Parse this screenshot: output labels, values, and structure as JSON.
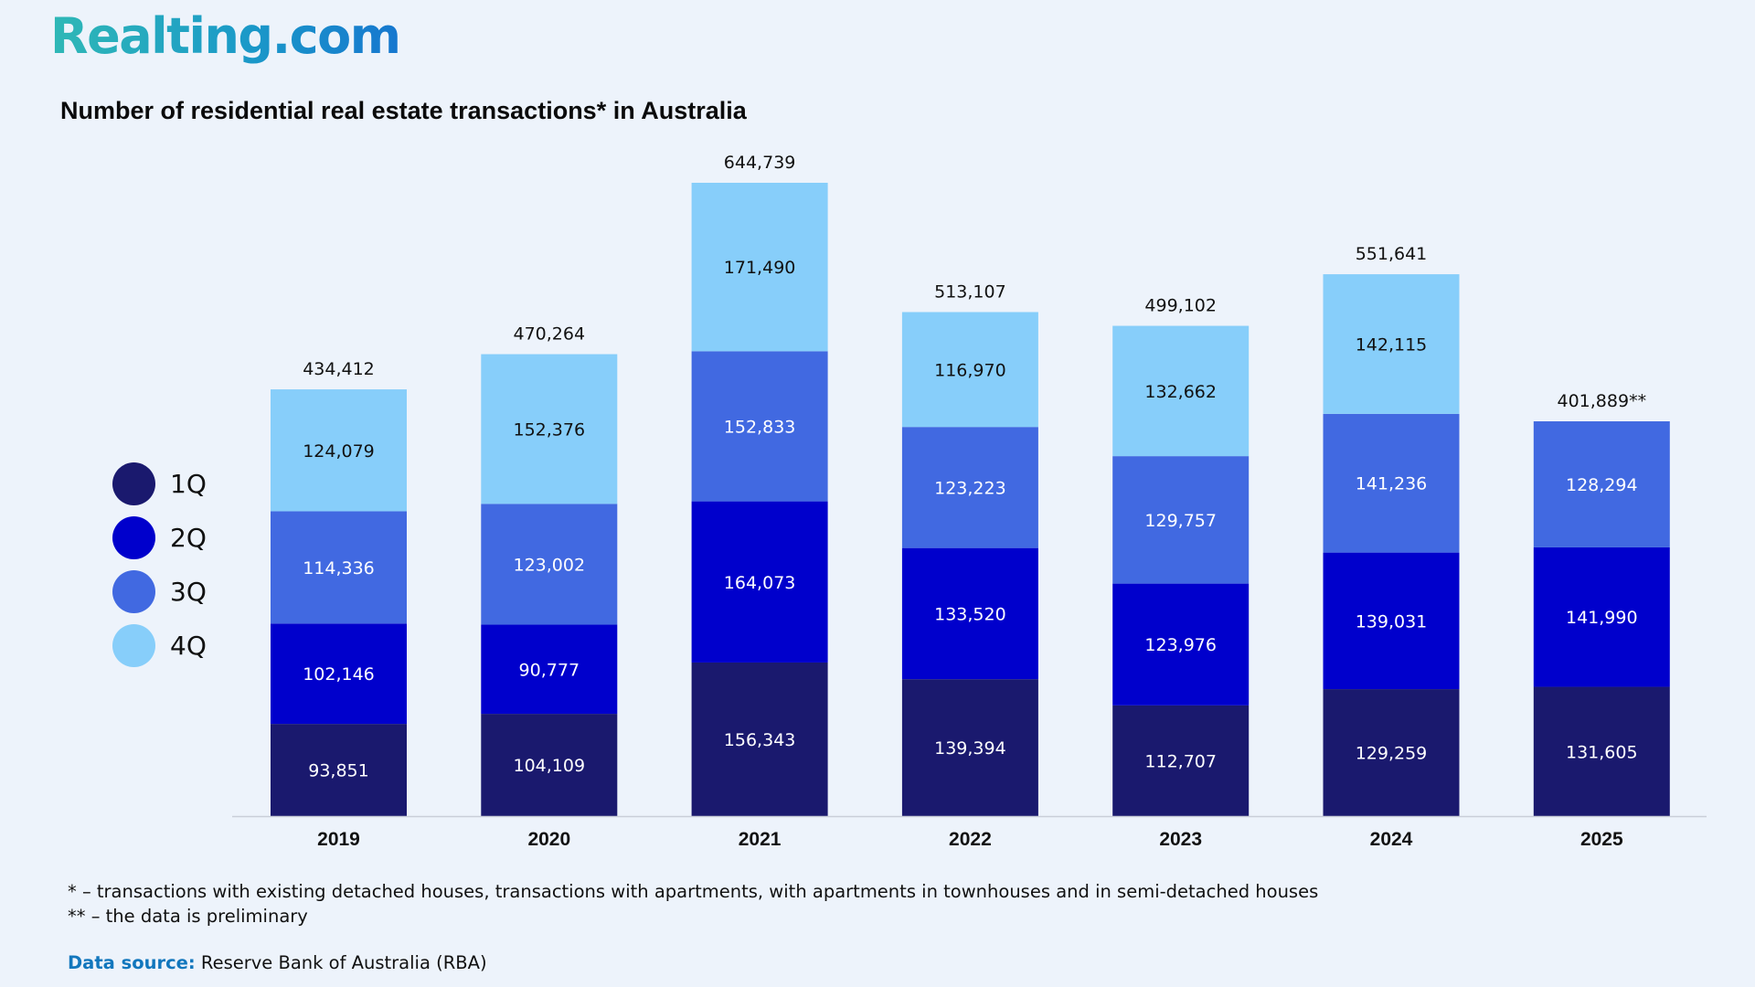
{
  "brand": {
    "logo_text": "Realting.com"
  },
  "title": "Number of residential real estate transactions* in Australia",
  "footnotes": [
    "* – transactions with existing detached houses, transactions with apartments, with apartments in townhouses and in semi-detached houses",
    "** – the data is preliminary"
  ],
  "source": {
    "label": "Data source:",
    "value": " Reserve Bank of Australia (RBA)"
  },
  "colors": {
    "1Q": "#1a196e",
    "2Q": "#0000cc",
    "3Q": "#4169e1",
    "4Q": "#87cefa",
    "axis": "#c9ced8"
  },
  "legend": [
    {
      "label": "1Q",
      "color": "#1a196e"
    },
    {
      "label": "2Q",
      "color": "#0000cc"
    },
    {
      "label": "3Q",
      "color": "#4169e1"
    },
    {
      "label": "4Q",
      "color": "#87cefa"
    }
  ],
  "chart_data": {
    "type": "bar",
    "stacked": true,
    "title": "Number of residential real estate transactions* in Australia",
    "xlabel": "",
    "ylabel": "",
    "ylim": [
      0,
      644739
    ],
    "grid": false,
    "legend_position": "left",
    "categories": [
      "2019",
      "2020",
      "2021",
      "2022",
      "2023",
      "2024",
      "2025"
    ],
    "series": [
      {
        "name": "1Q",
        "values": [
          93851,
          104109,
          156343,
          139394,
          112707,
          129259,
          131605
        ]
      },
      {
        "name": "2Q",
        "values": [
          102146,
          90777,
          164073,
          133520,
          123976,
          139031,
          141990
        ]
      },
      {
        "name": "3Q",
        "values": [
          114336,
          123002,
          152833,
          123223,
          129757,
          141236,
          128294
        ]
      },
      {
        "name": "4Q",
        "values": [
          124079,
          152376,
          171490,
          116970,
          132662,
          142115,
          null
        ]
      }
    ],
    "segment_labels": [
      [
        "93,851",
        "104,109",
        "156,343",
        "139,394",
        "112,707",
        "129,259",
        "131,605"
      ],
      [
        "102,146",
        "90,777",
        "164,073",
        "133,520",
        "123,976",
        "139,031",
        "141,990"
      ],
      [
        "114,336",
        "123,002",
        "152,833",
        "123,223",
        "129,757",
        "141,236",
        "128,294"
      ],
      [
        "124,079",
        "152,376",
        "171,490",
        "116,970",
        "132,662",
        "142,115",
        null
      ]
    ],
    "totals": [
      434412,
      470264,
      644739,
      513107,
      499102,
      551641,
      401889
    ],
    "total_labels": [
      "434,412",
      "470,264",
      "644,739",
      "513,107",
      "499,102",
      "551,641",
      "401,889**"
    ]
  }
}
